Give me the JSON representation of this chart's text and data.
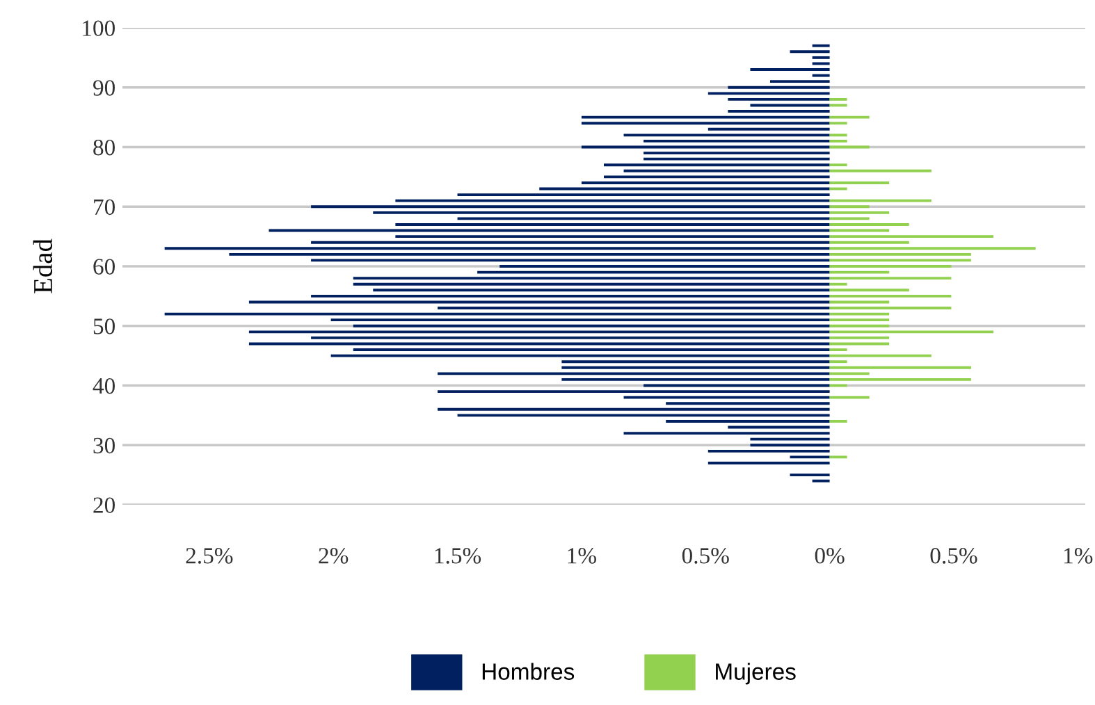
{
  "chart_data": {
    "type": "bar",
    "orientation": "horizontal",
    "ylabel": "Edad",
    "x": [
      24,
      25,
      26,
      27,
      28,
      29,
      30,
      31,
      32,
      33,
      34,
      35,
      36,
      37,
      38,
      39,
      40,
      41,
      42,
      43,
      44,
      45,
      46,
      47,
      48,
      49,
      50,
      51,
      52,
      53,
      54,
      55,
      56,
      57,
      58,
      59,
      60,
      61,
      62,
      63,
      64,
      65,
      66,
      67,
      68,
      69,
      70,
      71,
      72,
      73,
      74,
      75,
      76,
      77,
      78,
      79,
      80,
      81,
      82,
      83,
      84,
      85,
      86,
      87,
      88,
      89,
      90,
      91,
      92,
      93,
      94,
      95,
      96,
      97
    ],
    "series": [
      {
        "name": "Hombres",
        "color": "#002060",
        "values": [
          -0.07,
          -0.16,
          0,
          -0.49,
          -0.16,
          -0.49,
          -0.32,
          -0.32,
          -0.83,
          -0.41,
          -0.66,
          -1.5,
          -1.58,
          -0.66,
          -0.83,
          -1.58,
          -0.75,
          -1.08,
          -1.58,
          -1.08,
          -1.08,
          -2.01,
          -1.92,
          -2.34,
          -2.09,
          -2.34,
          -1.92,
          -2.01,
          -2.68,
          -1.58,
          -2.34,
          -2.09,
          -1.84,
          -1.92,
          -1.92,
          -1.42,
          -1.33,
          -2.09,
          -2.42,
          -2.68,
          -2.09,
          -1.75,
          -2.26,
          -1.75,
          -1.5,
          -1.84,
          -2.09,
          -1.75,
          -1.5,
          -1.17,
          -1.0,
          -0.91,
          -0.83,
          -0.91,
          -0.75,
          -0.75,
          -1.0,
          -0.75,
          -0.83,
          -0.49,
          -1.0,
          -1.0,
          -0.41,
          -0.32,
          -0.41,
          -0.49,
          -0.41,
          -0.24,
          -0.07,
          -0.32,
          -0.07,
          -0.07,
          -0.16,
          -0.07
        ]
      },
      {
        "name": "Mujeres",
        "color": "#92d050",
        "values": [
          0,
          0,
          0,
          0,
          0.07,
          0,
          0,
          0,
          0,
          0,
          0.07,
          0,
          0,
          0,
          0.16,
          0,
          0.07,
          0.57,
          0.16,
          0.57,
          0.07,
          0.41,
          0.07,
          0.24,
          0.24,
          0.66,
          0.24,
          0.24,
          0.24,
          0.49,
          0.24,
          0.49,
          0.32,
          0.07,
          0.49,
          0.24,
          0.49,
          0.57,
          0.57,
          0.83,
          0.32,
          0.66,
          0.24,
          0.32,
          0.16,
          0.24,
          0.16,
          0.41,
          0,
          0.07,
          0.24,
          0,
          0.41,
          0.07,
          0,
          0,
          0.16,
          0.07,
          0.07,
          0,
          0.07,
          0.16,
          0,
          0.07,
          0.07,
          0,
          0,
          0,
          0,
          0,
          0,
          0,
          0,
          0
        ]
      }
    ],
    "xlim": [
      -2.85,
      1.03
    ],
    "xticks": [
      {
        "value": -2.5,
        "label": "2.5%"
      },
      {
        "value": -2,
        "label": "2%"
      },
      {
        "value": -1.5,
        "label": "1.5%"
      },
      {
        "value": -1,
        "label": "1%"
      },
      {
        "value": -0.5,
        "label": "0.5%"
      },
      {
        "value": 0,
        "label": "0%"
      },
      {
        "value": 0.5,
        "label": "0.5%"
      },
      {
        "value": 1,
        "label": "1%"
      }
    ],
    "ylim": [
      20,
      100
    ],
    "yticks": [
      20,
      30,
      40,
      50,
      60,
      70,
      80,
      90,
      100
    ],
    "grid": "y",
    "legend": "bottom"
  }
}
